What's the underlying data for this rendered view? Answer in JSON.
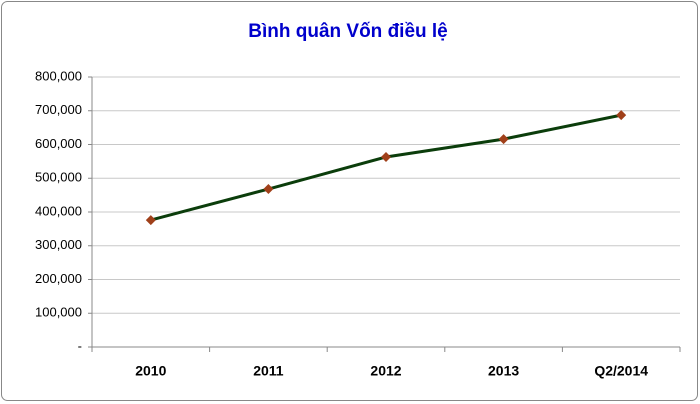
{
  "chart_data": {
    "type": "line",
    "title": "Bình quân Vốn điều lệ",
    "categories": [
      "2010",
      "2011",
      "2012",
      "2013",
      "Q2/2014"
    ],
    "series": [
      {
        "name": "Bình quân Vốn điều lệ",
        "color": "#0b3d0b",
        "marker_color": "#a0401a",
        "values": [
          376000,
          468000,
          563000,
          616000,
          687000
        ]
      }
    ],
    "ylim": [
      0,
      800000
    ],
    "yticks": [
      {
        "value": 0,
        "label": "-"
      },
      {
        "value": 100000,
        "label": "100,000"
      },
      {
        "value": 200000,
        "label": "200,000"
      },
      {
        "value": 300000,
        "label": "300,000"
      },
      {
        "value": 400000,
        "label": "400,000"
      },
      {
        "value": 500000,
        "label": "500,000"
      },
      {
        "value": 600000,
        "label": "600,000"
      },
      {
        "value": 700000,
        "label": "700,000"
      },
      {
        "value": 800000,
        "label": "800,000"
      }
    ],
    "grid": true
  }
}
